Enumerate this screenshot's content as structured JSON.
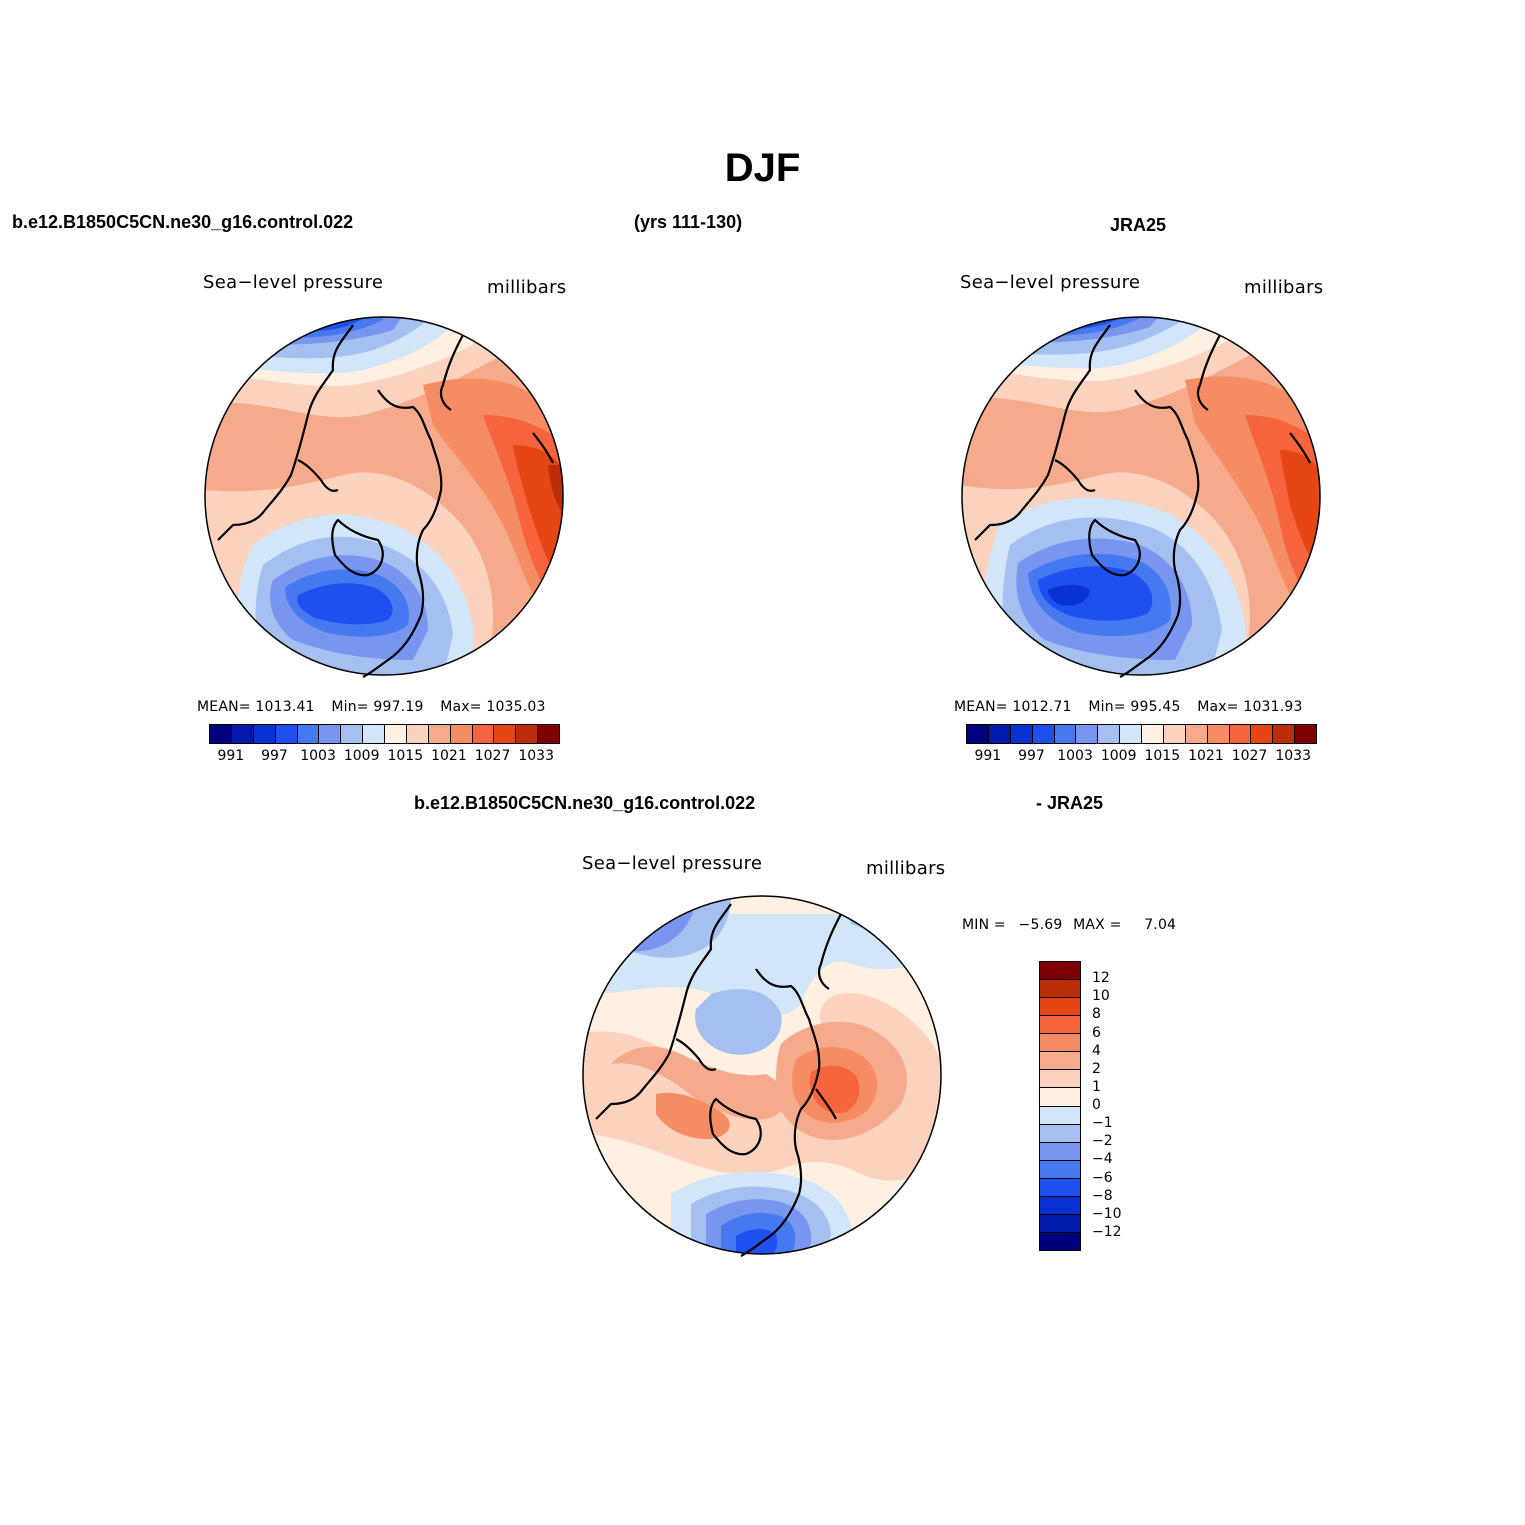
{
  "title": "DJF",
  "header": {
    "case_name": "b.e12.B1850C5CN.ne30_g16.control.022",
    "years": "(yrs 111-130)",
    "obs_name": "JRA25",
    "diff_case": "b.e12.B1850C5CN.ne30_g16.control.022",
    "diff_obs": "- JRA25"
  },
  "panels": {
    "model": {
      "variable": "Sea−level pressure",
      "units": "millibars",
      "mean_label": "MEAN=",
      "mean_value": "1013.41",
      "min_label": "Min=",
      "min_value": "997.19",
      "max_label": "Max=",
      "max_value": "1035.03"
    },
    "obs": {
      "variable": "Sea−level pressure",
      "units": "millibars",
      "mean_label": "MEAN=",
      "mean_value": "1012.71",
      "min_label": "Min=",
      "min_value": "995.45",
      "max_label": "Max=",
      "max_value": "1031.93"
    },
    "diff": {
      "variable": "Sea−level pressure",
      "units": "millibars",
      "min_label": "MIN =",
      "min_value": "−5.69",
      "max_label": "MAX =",
      "max_value": "7.04"
    }
  },
  "colorbar_abs": {
    "colors": [
      "#00007f",
      "#0019a8",
      "#0a32d2",
      "#1e50f0",
      "#4678f0",
      "#7896f0",
      "#a5c0f0",
      "#d2e6fa",
      "#fff0e1",
      "#fad2be",
      "#f5aa8c",
      "#f58c64",
      "#f5643c",
      "#e64614",
      "#be2d0a",
      "#7f0000"
    ],
    "tick_labels": [
      "991",
      "997",
      "1003",
      "1009",
      "1015",
      "1021",
      "1027",
      "1033"
    ]
  },
  "colorbar_diff": {
    "colors": [
      "#7f0000",
      "#be2d0a",
      "#e64614",
      "#f5643c",
      "#f58c64",
      "#f5aa8c",
      "#fad2be",
      "#fff0e1",
      "#d2e6fa",
      "#a5c0f0",
      "#7896f0",
      "#4678f0",
      "#1e50f0",
      "#0a32d2",
      "#0019a8",
      "#00007f"
    ],
    "tick_labels": [
      "12",
      "10",
      "8",
      "6",
      "4",
      "2",
      "1",
      "0",
      "−1",
      "−2",
      "−4",
      "−6",
      "−8",
      "−10",
      "−12"
    ]
  },
  "map_colors": {
    "deep_blue": "#0a32d2",
    "blue": "#1e50f0",
    "mid_blue": "#4678f0",
    "light_blue": "#7896f0",
    "pale_blue": "#a5c0f0",
    "very_pale_blue": "#d2e6fa",
    "cream": "#fff0e1",
    "pale_orange": "#fad2be",
    "light_orange": "#f5aa8c",
    "orange": "#f58c64",
    "red_orange": "#f5643c",
    "red": "#e64614",
    "dark_red": "#be2d0a",
    "coast": "#000000"
  }
}
